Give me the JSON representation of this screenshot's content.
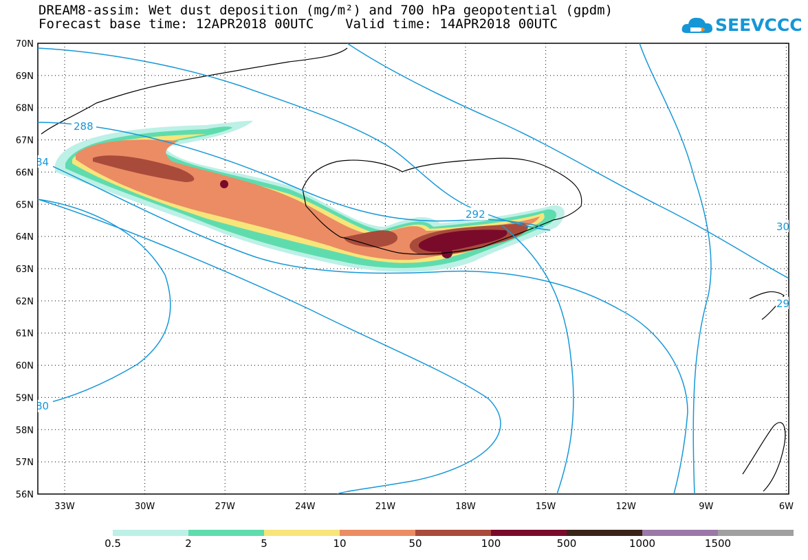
{
  "header": {
    "title_line1": "DREAM8-assim: Wet dust deposition (mg/m²) and 700 hPa geopotential (gpdm)",
    "title_line2": "Forecast base time: 12APR2018 00UTC    Valid time: 14APR2018 00UTC"
  },
  "logo": {
    "text": "SEEVCCC",
    "icon": "cloud-icon",
    "color": "#1597d7"
  },
  "map": {
    "lat_labels": [
      "70N",
      "69N",
      "68N",
      "67N",
      "66N",
      "65N",
      "64N",
      "63N",
      "62N",
      "61N",
      "60N",
      "59N",
      "58N",
      "57N",
      "56N"
    ],
    "lon_labels": [
      "33W",
      "30W",
      "27W",
      "24W",
      "21W",
      "18W",
      "15W",
      "12W",
      "9W",
      "6W"
    ],
    "contour_labels": [
      "288",
      "84",
      "292",
      "30",
      "29",
      "80"
    ],
    "contour_color": "#1597d7"
  },
  "legend": {
    "labels": [
      "0.5",
      "2",
      "5",
      "10",
      "50",
      "100",
      "500",
      "1000",
      "1500"
    ],
    "colors": [
      "#bdf0e6",
      "#5fdcae",
      "#f7e57a",
      "#eb8c64",
      "#a94b3b",
      "#7a0a2a",
      "#3a2418",
      "#9b78a8",
      "#a0a0a0"
    ]
  }
}
